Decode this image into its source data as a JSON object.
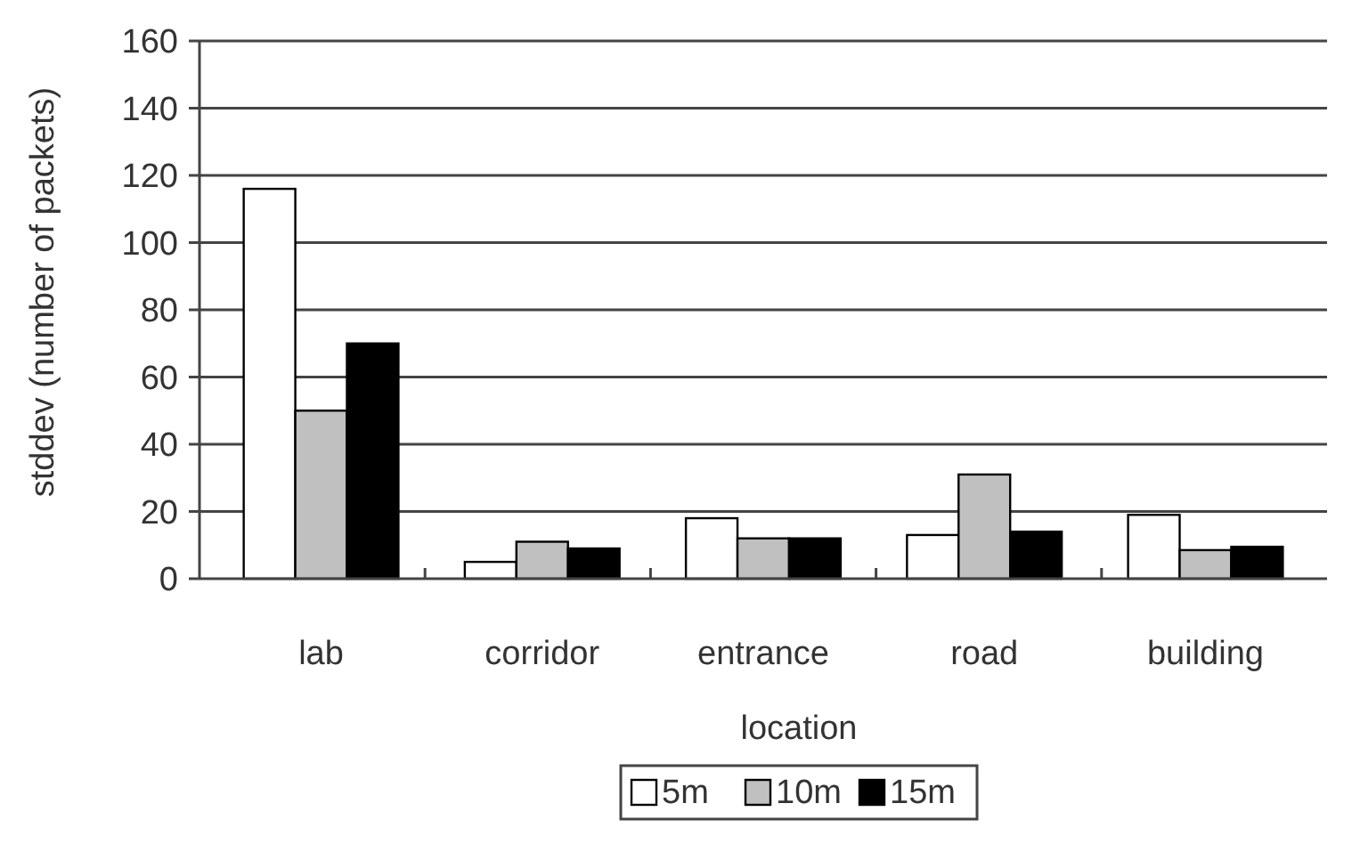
{
  "chart_data": {
    "type": "bar",
    "xlabel": "location",
    "ylabel": "stddev (number of packets)",
    "categories": [
      "lab",
      "corridor",
      "entrance",
      "road",
      "building"
    ],
    "series": [
      {
        "name": "5m",
        "color": "#ffffff",
        "values": [
          116,
          5,
          18,
          13,
          19
        ]
      },
      {
        "name": "10m",
        "color": "#c0c0c0",
        "values": [
          50,
          11,
          12,
          31,
          8.5
        ]
      },
      {
        "name": "15m",
        "color": "#000000",
        "values": [
          70,
          9,
          12,
          14,
          9.5
        ]
      }
    ],
    "ylim": [
      0,
      160
    ],
    "yticks": [
      0,
      20,
      40,
      60,
      80,
      100,
      120,
      140,
      160
    ],
    "grid": "y",
    "legend": "bottom"
  }
}
